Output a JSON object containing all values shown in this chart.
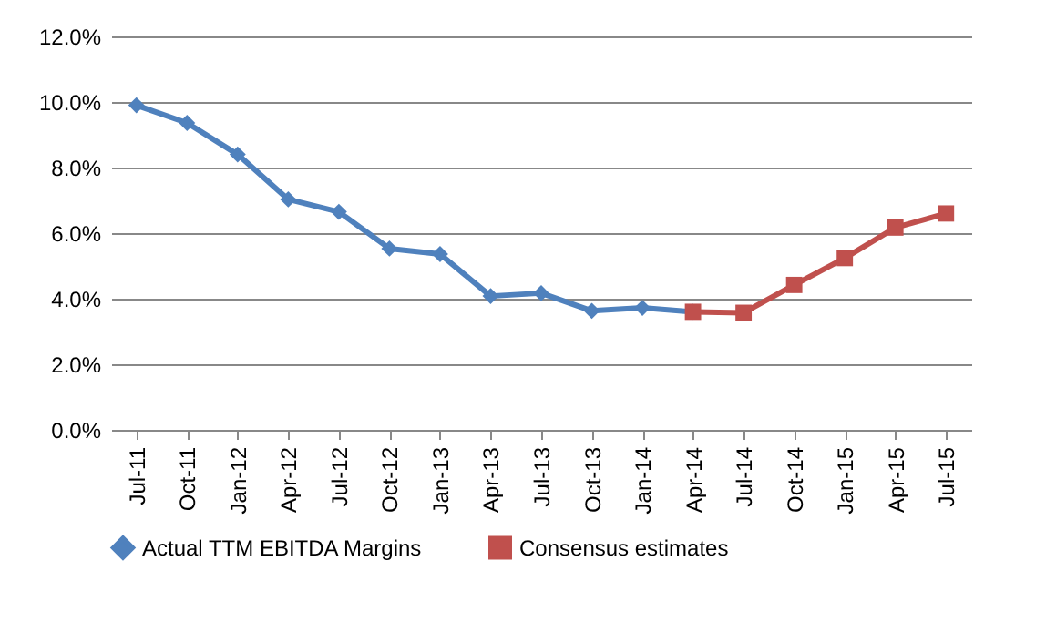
{
  "chart_data": {
    "type": "line",
    "categories": [
      "Jul-11",
      "Oct-11",
      "Jan-12",
      "Apr-12",
      "Jul-12",
      "Oct-12",
      "Jan-13",
      "Apr-13",
      "Jul-13",
      "Oct-13",
      "Jan-14",
      "Apr-14",
      "Jul-14",
      "Oct-14",
      "Jan-15",
      "Apr-15",
      "Jul-15"
    ],
    "series": [
      {
        "name": "Actual TTM EBITDA Margins",
        "color": "#4f81bd",
        "marker": "diamond",
        "values": [
          9.9,
          9.36,
          8.4,
          7.03,
          6.65,
          5.53,
          5.36,
          4.08,
          4.17,
          3.63,
          3.72,
          3.6,
          null,
          null,
          null,
          null,
          null
        ]
      },
      {
        "name": "Consensus estimates",
        "color": "#c0504d",
        "marker": "square",
        "values": [
          null,
          null,
          null,
          null,
          null,
          null,
          null,
          null,
          null,
          null,
          null,
          3.6,
          3.57,
          4.42,
          5.24,
          6.17,
          6.6
        ]
      }
    ],
    "ylim": [
      0,
      12
    ],
    "yticks": [
      {
        "value": 0,
        "label": "0.0%"
      },
      {
        "value": 2,
        "label": "2.0%"
      },
      {
        "value": 4,
        "label": "4.0%"
      },
      {
        "value": 6,
        "label": "6.0%"
      },
      {
        "value": 8,
        "label": "8.0%"
      },
      {
        "value": 10,
        "label": "10.0%"
      },
      {
        "value": 12,
        "label": "12.0%"
      }
    ],
    "grid": "y",
    "legend": "bottom"
  }
}
